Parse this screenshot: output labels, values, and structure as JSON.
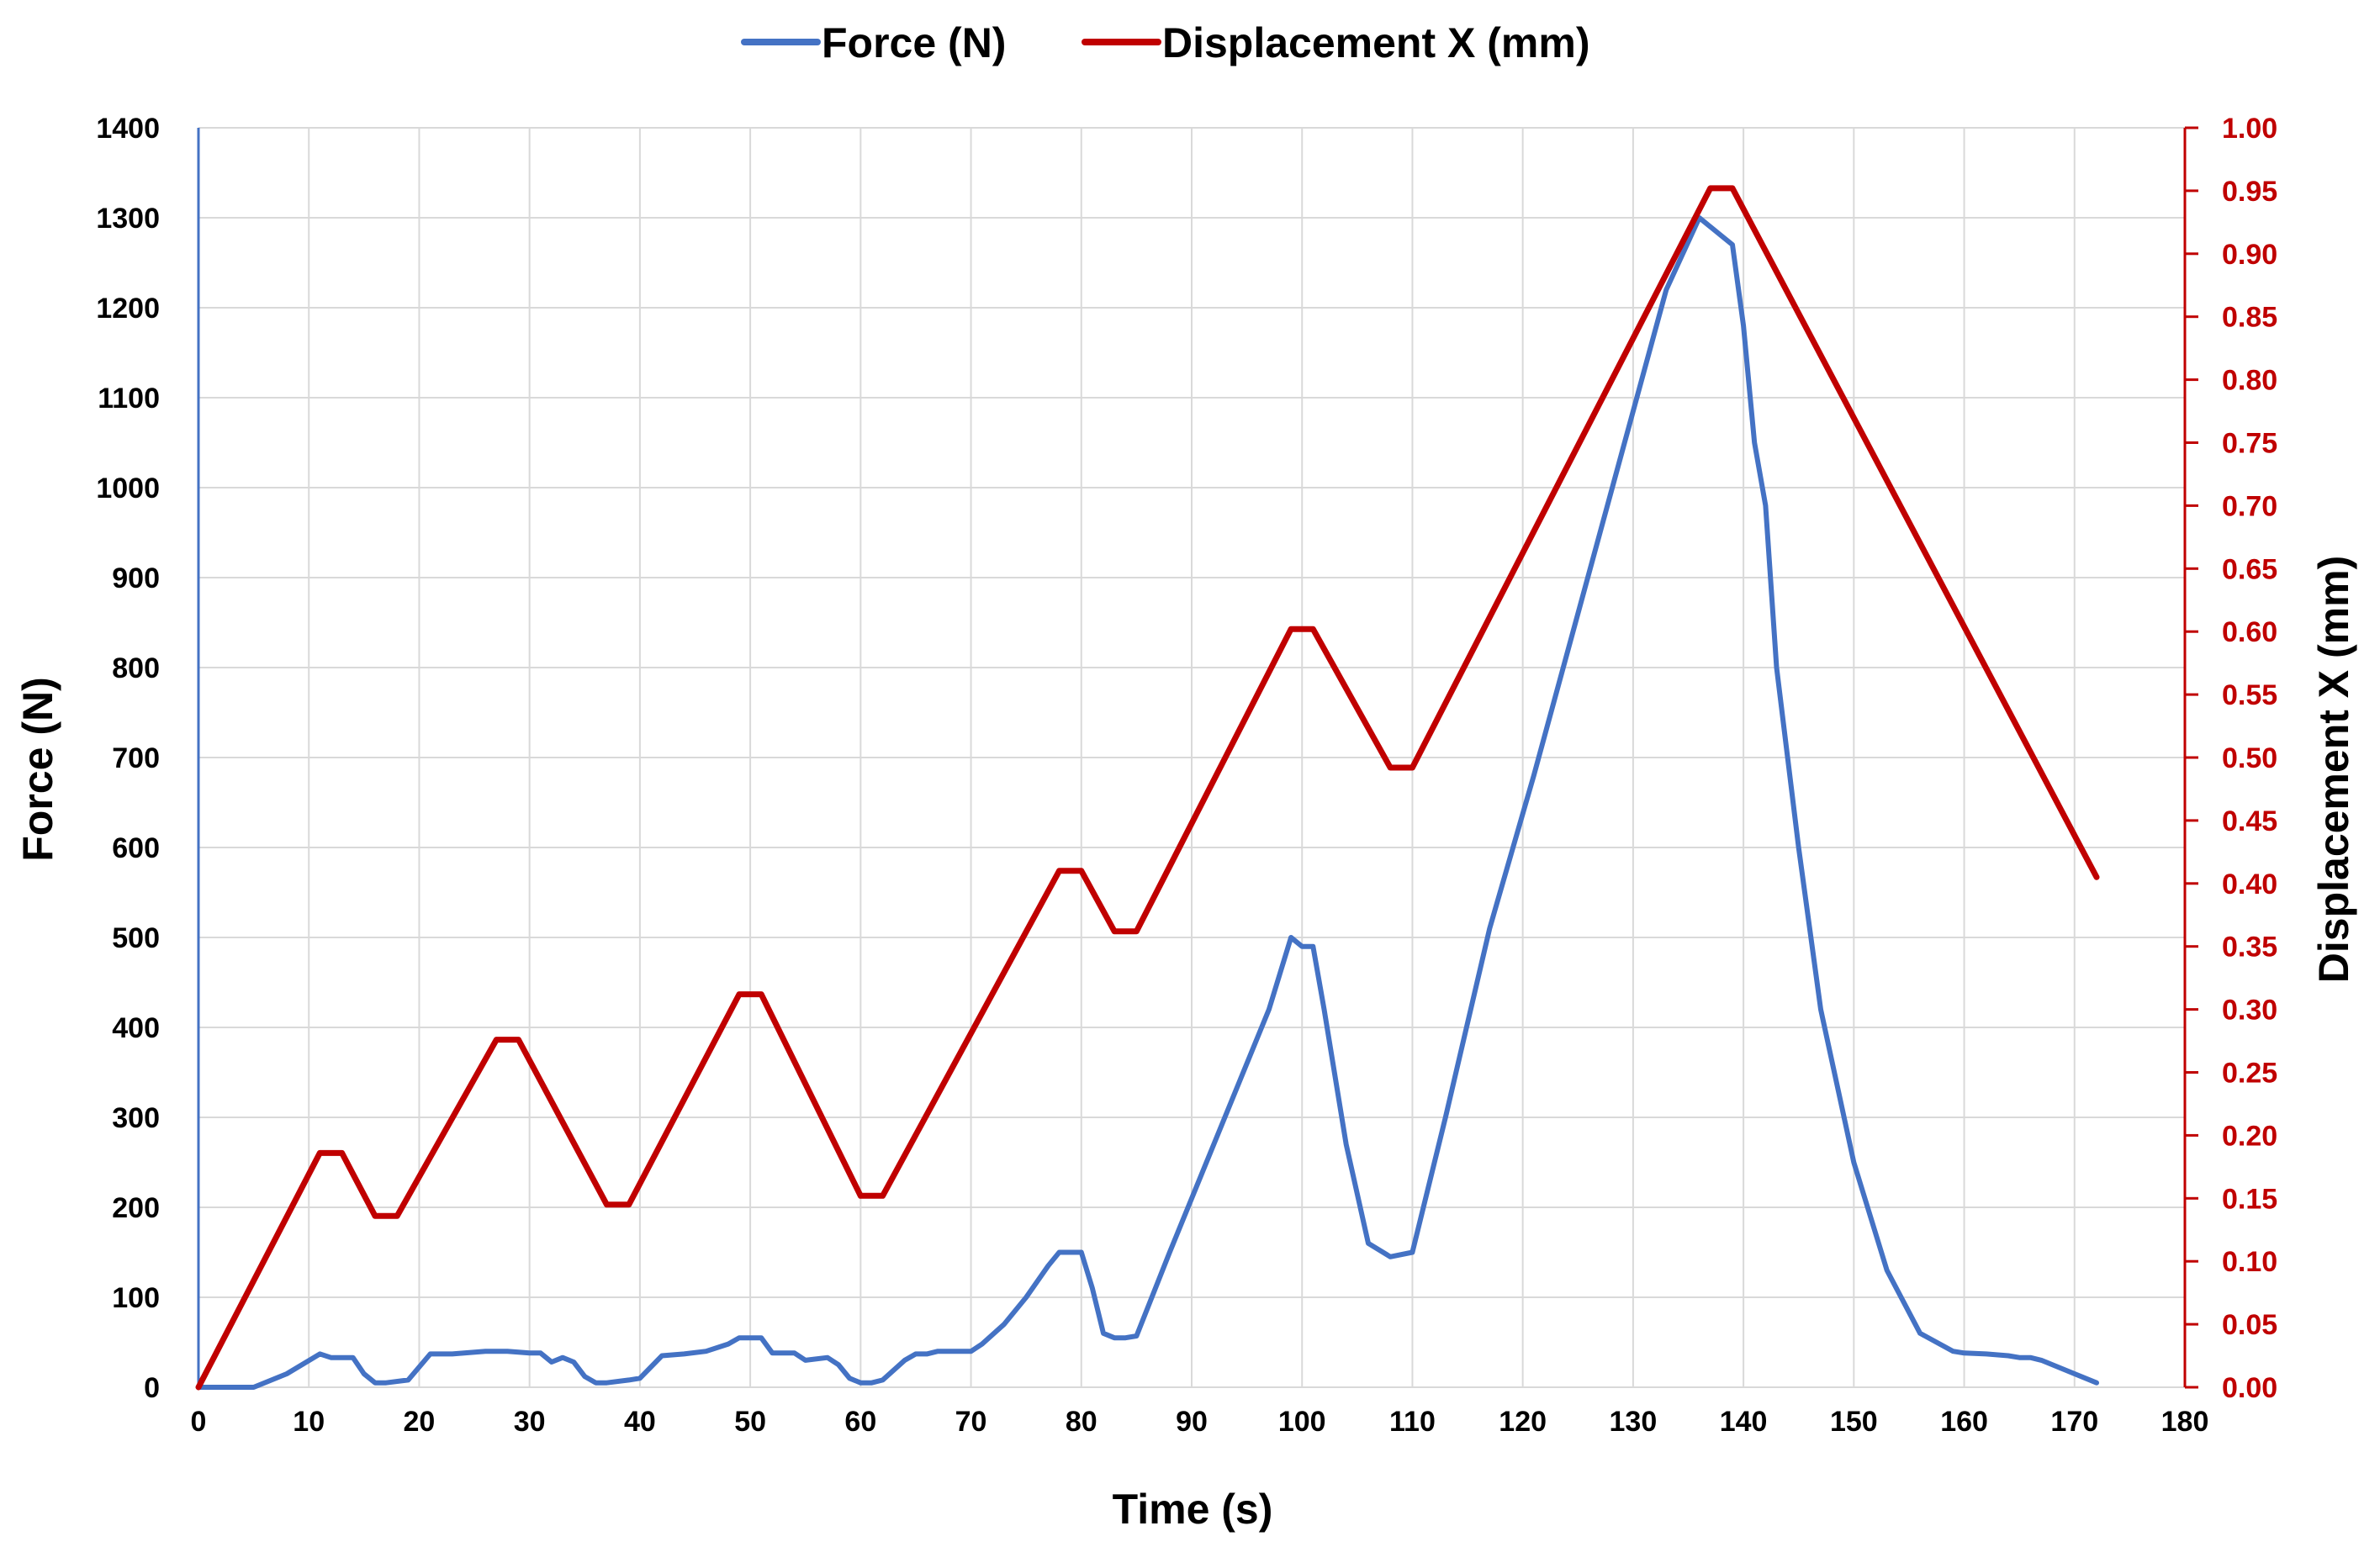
{
  "chart_data": {
    "type": "line",
    "title": "",
    "xlabel": "Time (s)",
    "ylabel": "Force (N)",
    "y2label": "Displacement X (mm)",
    "xlim": [
      0,
      180
    ],
    "ylim": [
      0,
      1400
    ],
    "y2lim": [
      0,
      1.0
    ],
    "xticks": [
      0,
      10,
      20,
      30,
      40,
      50,
      60,
      70,
      80,
      90,
      100,
      110,
      120,
      130,
      140,
      150,
      160,
      170,
      180
    ],
    "yticks": [
      0,
      100,
      200,
      300,
      400,
      500,
      600,
      700,
      800,
      900,
      1000,
      1100,
      1200,
      1300,
      1400
    ],
    "y2ticks": [
      "0.00",
      "0.05",
      "0.10",
      "0.15",
      "0.20",
      "0.25",
      "0.30",
      "0.35",
      "0.40",
      "0.45",
      "0.50",
      "0.55",
      "0.60",
      "0.65",
      "0.70",
      "0.75",
      "0.80",
      "0.85",
      "0.90",
      "0.95",
      "1.00"
    ],
    "grid": true,
    "legend_position": "top-center",
    "colors": {
      "force": "#4472c4",
      "displacement": "#c00000",
      "left_axis": "#4472c4",
      "right_axis": "#c00000"
    },
    "series": [
      {
        "name": "Force (N)",
        "axis": "left",
        "color": "#4472c4",
        "x": [
          0,
          5,
          8,
          11,
          12,
          14,
          15,
          16,
          17,
          19,
          21,
          23,
          26,
          28,
          30,
          31,
          32,
          33,
          34,
          35,
          36,
          37,
          39,
          40,
          42,
          44,
          46,
          48,
          49,
          51,
          52,
          54,
          55,
          57,
          58,
          59,
          60,
          61,
          62,
          64,
          65,
          66,
          67,
          70,
          71,
          73,
          75,
          77,
          78,
          79,
          80,
          81,
          82,
          83,
          84,
          85,
          88,
          93,
          97,
          99,
          100,
          101,
          102,
          104,
          106,
          108,
          110,
          113,
          117,
          121,
          125,
          129,
          133,
          136,
          137,
          138,
          139,
          140,
          141,
          142,
          143,
          145,
          147,
          150,
          153,
          156,
          159,
          160,
          162,
          164,
          165,
          166,
          167,
          170,
          172
        ],
        "y": [
          0,
          0,
          15,
          37,
          33,
          33,
          15,
          5,
          5,
          8,
          37,
          37,
          40,
          40,
          38,
          38,
          28,
          33,
          28,
          12,
          5,
          5,
          8,
          10,
          35,
          37,
          40,
          48,
          55,
          55,
          38,
          38,
          30,
          33,
          25,
          10,
          5,
          5,
          8,
          30,
          37,
          37,
          40,
          40,
          48,
          70,
          100,
          135,
          150,
          150,
          150,
          110,
          60,
          55,
          55,
          57,
          150,
          300,
          420,
          500,
          490,
          490,
          420,
          270,
          160,
          145,
          150,
          300,
          510,
          680,
          860,
          1040,
          1220,
          1300,
          1290,
          1280,
          1270,
          1180,
          1050,
          980,
          800,
          600,
          420,
          250,
          130,
          60,
          40,
          38,
          37,
          35,
          33,
          33,
          30,
          15,
          5
        ]
      },
      {
        "name": "Displacement X (mm)",
        "axis": "right",
        "color": "#c00000",
        "x": [
          0,
          11,
          13,
          16,
          18,
          27,
          29,
          37,
          39,
          49,
          51,
          60,
          62,
          78,
          80,
          83,
          85,
          99,
          101,
          108,
          110,
          137,
          139,
          172
        ],
        "y": [
          0.0,
          0.186,
          0.186,
          0.136,
          0.136,
          0.276,
          0.276,
          0.145,
          0.145,
          0.312,
          0.312,
          0.152,
          0.152,
          0.41,
          0.41,
          0.362,
          0.362,
          0.602,
          0.602,
          0.492,
          0.492,
          0.952,
          0.952,
          0.405
        ]
      }
    ]
  }
}
